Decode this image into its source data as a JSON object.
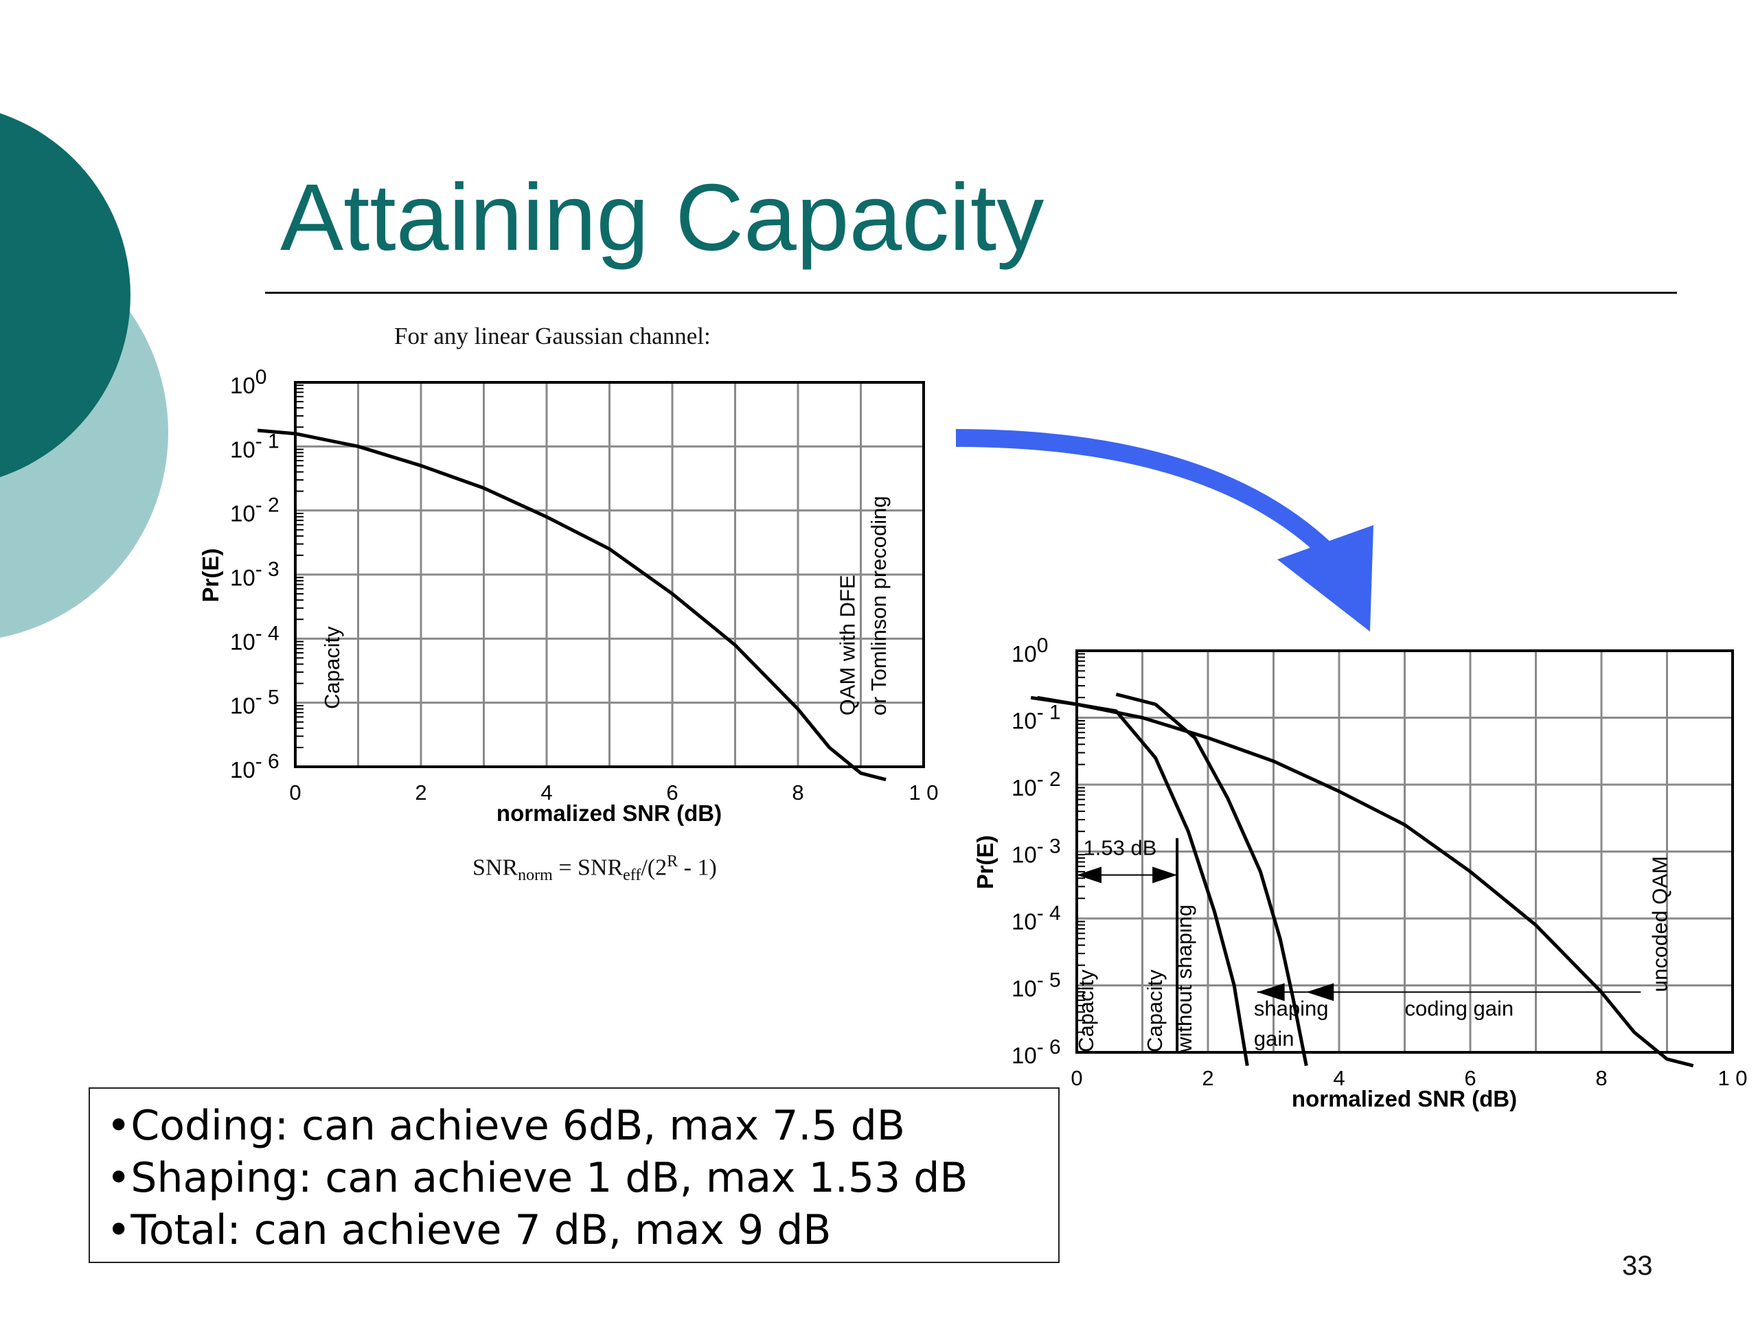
{
  "slide": {
    "title": "Attaining Capacity",
    "page_number": "33",
    "accent_colors": {
      "teal_dark": "#0e6b68",
      "teal_light": "#9dcbcc",
      "arrow_blue": "#3c64f0"
    },
    "left_caption": "For any linear Gaussian channel:",
    "formula": {
      "a": "SNR",
      "a_sub": "norm",
      "eq": " = SNR",
      "b_sub": "eff",
      "c": "/(2",
      "c_sup": "R",
      "d": " - 1)"
    },
    "bullets": [
      "•Coding: can achieve 6dB, max 7.5 dB",
      "•Shaping: can achieve 1 dB, max 1.53 dB",
      "•Total: can achieve 7 dB, max 9 dB"
    ]
  },
  "chart_data": [
    {
      "type": "line",
      "xlabel": "normalized SNR (dB)",
      "ylabel": "Pr(E)",
      "xlim": [
        0,
        10
      ],
      "yscale": "log",
      "ylim_exp": [
        -6,
        0
      ],
      "x_ticks": [
        "0",
        "2",
        "4",
        "6",
        "8",
        "1 0"
      ],
      "y_ticks": [
        {
          "base": "10",
          "exp": "0"
        },
        {
          "base": "10",
          "exp": "- 1"
        },
        {
          "base": "10",
          "exp": "- 2"
        },
        {
          "base": "10",
          "exp": "- 3"
        },
        {
          "base": "10",
          "exp": "- 4"
        },
        {
          "base": "10",
          "exp": "- 5"
        },
        {
          "base": "10",
          "exp": "- 6"
        }
      ],
      "grid": true,
      "series": [
        {
          "x": [
            -0.6,
            0,
            1,
            2,
            3,
            4,
            5,
            6,
            7,
            8,
            8.5,
            9,
            9.4
          ],
          "log10_y": [
            -0.75,
            -0.8,
            -1.0,
            -1.3,
            -1.65,
            -2.1,
            -2.6,
            -3.3,
            -4.1,
            -5.1,
            -5.7,
            -6.1,
            -6.2
          ]
        }
      ],
      "annotations": [
        {
          "text": "Capacity",
          "x": 0.7,
          "log10_y": -5.1
        },
        {
          "text": "QAM  with DFE",
          "x": 8.9,
          "log10_y": -5.2
        },
        {
          "text": "or Tomlinson precoding",
          "x": 9.4,
          "log10_y": -5.2
        }
      ]
    },
    {
      "type": "line",
      "xlabel": "normalized SNR (dB)",
      "ylabel": "Pr(E)",
      "xlim": [
        0,
        10
      ],
      "yscale": "log",
      "ylim_exp": [
        -6,
        0
      ],
      "x_ticks": [
        "0",
        "2",
        "4",
        "6",
        "8",
        "1 0"
      ],
      "y_ticks": [
        {
          "base": "10",
          "exp": "0"
        },
        {
          "base": "10",
          "exp": "- 1"
        },
        {
          "base": "10",
          "exp": "- 2"
        },
        {
          "base": "10",
          "exp": "- 3"
        },
        {
          "base": "10",
          "exp": "- 4"
        },
        {
          "base": "10",
          "exp": "- 5"
        },
        {
          "base": "10",
          "exp": "- 6"
        }
      ],
      "grid": true,
      "series": [
        {
          "x": [
            -0.7,
            0,
            1,
            2,
            3,
            4,
            5,
            6,
            7,
            8,
            8.5,
            9,
            9.4
          ],
          "log10_y": [
            -0.7,
            -0.8,
            -1.0,
            -1.3,
            -1.65,
            -2.1,
            -2.6,
            -3.3,
            -4.1,
            -5.1,
            -5.7,
            -6.1,
            -6.2
          ]
        },
        {
          "x": [
            0.6,
            1.2,
            1.8,
            2.3,
            2.8,
            3.1,
            3.3,
            3.5
          ],
          "log10_y": [
            -0.65,
            -0.8,
            -1.3,
            -2.2,
            -3.3,
            -4.3,
            -5.2,
            -6.2
          ]
        },
        {
          "x": [
            -0.6,
            0.6,
            1.2,
            1.7,
            2.1,
            2.4,
            2.6
          ],
          "log10_y": [
            -0.7,
            -0.9,
            -1.6,
            -2.7,
            -3.9,
            -5.0,
            -6.2
          ]
        }
      ],
      "annotations": [
        {
          "text": "Capacity",
          "x": 0.25,
          "log10_y": -6.0
        },
        {
          "text": "Capacity",
          "x": 1.3,
          "log10_y": -6.0
        },
        {
          "text": "without shaping",
          "x": 1.75,
          "log10_y": -6.0
        },
        {
          "text": "1.53 dB",
          "x": 0.1,
          "log10_y": -3.05
        },
        {
          "text": "shaping",
          "x": 2.7,
          "log10_y": -5.45
        },
        {
          "text": "gain",
          "x": 2.7,
          "log10_y": -5.9
        },
        {
          "text": "coding gain",
          "x": 5.0,
          "log10_y": -5.45
        },
        {
          "text": "uncoded QAM",
          "x": 9.0,
          "log10_y": -5.1
        }
      ],
      "gap_markers": [
        {
          "from_x": 0,
          "to_x": 1.53,
          "log10_y": -3.35
        },
        {
          "from_x": 2.75,
          "to_x": 3.5,
          "log10_y": -5.1
        },
        {
          "from_x": 3.5,
          "to_x": 8.6,
          "log10_y": -5.1
        }
      ]
    }
  ]
}
